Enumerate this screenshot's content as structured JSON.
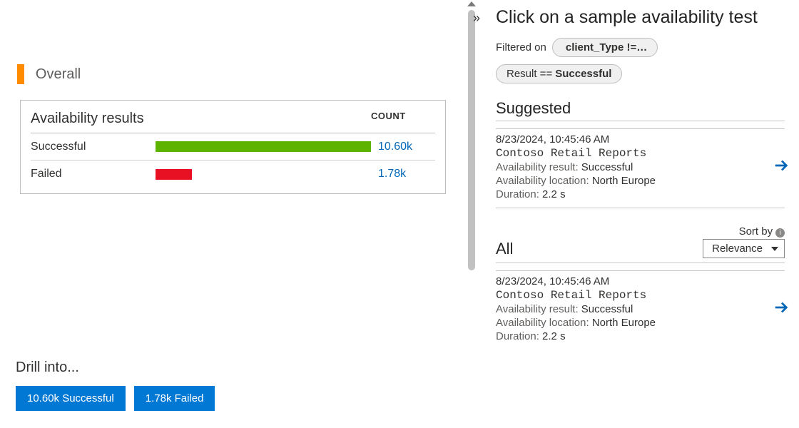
{
  "left": {
    "overall_label": "Overall",
    "accent_color": "#ff8c00",
    "card": {
      "title": "Availability results",
      "count_header": "COUNT",
      "bar_colors": {
        "successful": "#5db300",
        "failed": "#e81123"
      },
      "link_color": "#0067b8",
      "max_value": 10600,
      "rows": [
        {
          "label": "Successful",
          "value": 10600,
          "display": "10.60k",
          "color_key": "successful"
        },
        {
          "label": "Failed",
          "value": 1780,
          "display": "1.78k",
          "color_key": "failed"
        }
      ]
    },
    "drill": {
      "label": "Drill into...",
      "button_bg": "#0078d4",
      "buttons": [
        {
          "label": "10.60k Successful"
        },
        {
          "label": "1.78k Failed"
        }
      ]
    }
  },
  "right": {
    "title": "Click on a sample availability test",
    "filtered_on_label": "Filtered on",
    "pills": [
      {
        "prefix": "",
        "bold": "client_Type !=…"
      },
      {
        "prefix": "Result == ",
        "bold": "Successful"
      }
    ],
    "suggested_header": "Suggested",
    "all_header": "All",
    "sort_by_label": "Sort by",
    "sort_by_value": "Relevance",
    "arrow_color": "#0067b8",
    "entries": [
      {
        "timestamp": "8/23/2024, 10:45:46 AM",
        "name": "Contoso Retail Reports",
        "result_label": "Availability result:",
        "result_value": "Successful",
        "location_label": "Availability location:",
        "location_value": "North Europe",
        "duration_label": "Duration:",
        "duration_value": "2.2 s"
      },
      {
        "timestamp": "8/23/2024, 10:45:46 AM",
        "name": "Contoso Retail Reports",
        "result_label": "Availability result:",
        "result_value": "Successful",
        "location_label": "Availability location:",
        "location_value": "North Europe",
        "duration_label": "Duration:",
        "duration_value": "2.2 s"
      }
    ]
  }
}
